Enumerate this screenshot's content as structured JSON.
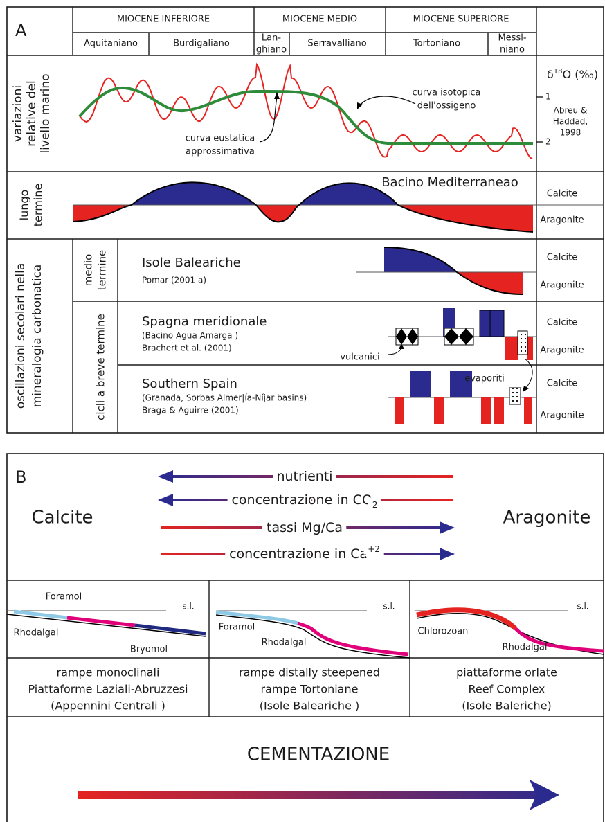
{
  "panel_a": {
    "label": "A",
    "periods": [
      "MIOCENE INFERIORE",
      "MIOCENE MEDIO",
      "MIOCENE SUPERIORE"
    ],
    "stages": [
      [
        "Aquitaniano"
      ],
      [
        "Burdigaliano"
      ],
      [
        "Lan-",
        "ghiano"
      ],
      [
        "Serravalliano"
      ],
      [
        "Tortoniano"
      ],
      [
        "Messi-",
        "niano"
      ]
    ],
    "sea_level": {
      "row_label": [
        "variazioni",
        "relative del",
        "livello marino"
      ],
      "isotope_axis": {
        "symbol": "δ",
        "superscript": "18",
        "label": "O (‰)",
        "ticks": [
          "1",
          "2"
        ]
      },
      "source": [
        "Abreu &",
        "Haddad,",
        "1998"
      ],
      "isotope_curve_label": [
        "curva isotopica",
        "dell'ossigeno"
      ],
      "eustatic_curve_label": [
        "curva eustatica",
        "approssimativa"
      ]
    },
    "calcite": "Calcite",
    "aragonite": "Aragonite",
    "long_term": {
      "row_label": [
        "lungo",
        "termine"
      ],
      "title": "Bacino Mediterraneao"
    },
    "group_label": [
      "oscillazioni secolari nella",
      "mineralogia carbonatica"
    ],
    "medium_term": {
      "row_label": [
        "medio",
        "termine"
      ],
      "title": "Isole Baleariche",
      "reference": "Pomar (2001 a)"
    },
    "short_term": {
      "row_label": "cicli a breve termine",
      "rows": [
        {
          "title": "Spagna meridionale",
          "subtitle": "(Bacino Agua Amarga )",
          "reference": "Brachert et al. (2001)",
          "annotation": "vulcanici"
        },
        {
          "title": "Southern Spain",
          "subtitle": "(Granada, Sorbas Almer|ía-Níjar basins)",
          "reference": "Braga & Aguirre (2001)",
          "annotation": "evaporiti"
        }
      ]
    }
  },
  "panel_b": {
    "label": "B",
    "calcite": "Calcite",
    "aragonite": "Aragonite",
    "arrows": [
      {
        "text": "nutrienti"
      },
      {
        "text": "concentrazione in CO",
        "sub": "2"
      },
      {
        "text": "tassi Mg/Ca"
      },
      {
        "text": "concentrazione in Ca",
        "sup": "+2"
      }
    ],
    "profiles": [
      {
        "sea_level": "s.l.",
        "facies": [
          "Foramol",
          "Rhodalgal",
          "Bryomol"
        ],
        "caption": [
          "rampe monoclinali",
          "Piattaforme Laziali-Abruzzesi",
          "(Appennini Centrali )"
        ]
      },
      {
        "sea_level": "s.l.",
        "facies": [
          "Foramol",
          "Rhodalgal"
        ],
        "caption": [
          "rampe distally steepened",
          "rampe Tortoniane",
          "(Isole Baleariche )"
        ]
      },
      {
        "sea_level": "s.l.",
        "facies": [
          "Chlorozoan",
          "Rhodalgal"
        ],
        "caption": [
          "piattaforme orlate",
          "Reef Complex",
          "(Isole Baleriche)"
        ]
      }
    ],
    "cementation": "CEMENTAZIONE"
  }
}
